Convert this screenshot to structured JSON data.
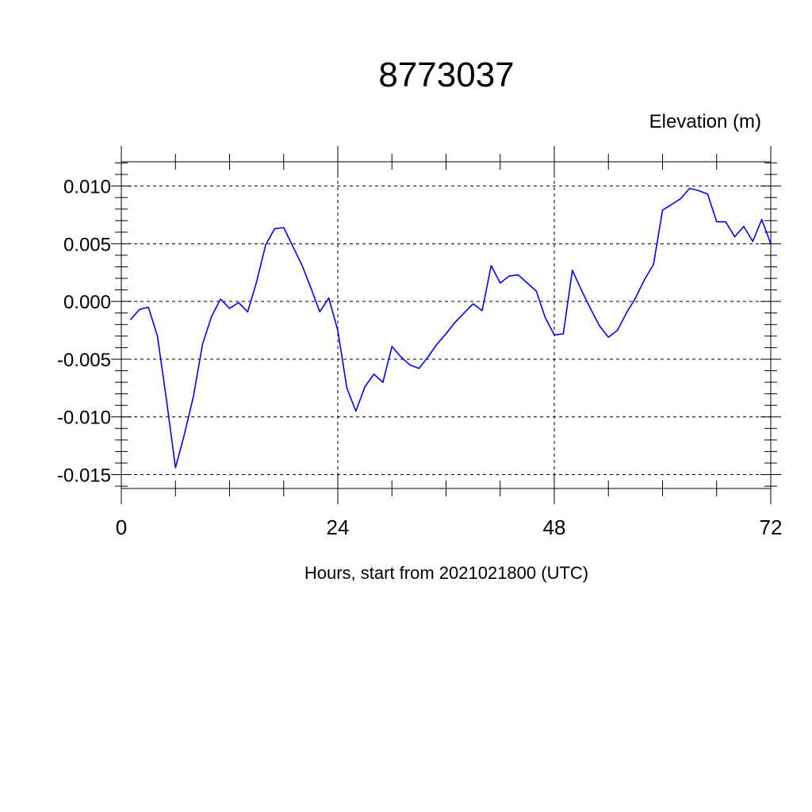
{
  "chart_data": {
    "type": "line",
    "title": "8773037",
    "ylabel": "Elevation (m)",
    "xlabel": "Hours, start from 2021021800 (UTC)",
    "xlim": [
      0,
      72
    ],
    "ylim": [
      -0.0162,
      0.0121
    ],
    "x_ticks": [
      0,
      24,
      48,
      72
    ],
    "x_tick_labels": [
      "0",
      "24",
      "48",
      "72"
    ],
    "y_ticks": [
      0.01,
      0.005,
      0.0,
      -0.005,
      -0.01,
      -0.015
    ],
    "y_tick_labels": [
      "0.010",
      "0.005",
      "0.000",
      "-0.005",
      "-0.010",
      "-0.015"
    ],
    "grid": "dashed at major ticks",
    "series": [
      {
        "color": "#0000ff",
        "x": [
          1,
          2,
          3,
          4,
          5,
          6,
          7,
          8,
          9,
          10,
          11,
          12,
          13,
          14,
          15,
          16,
          17,
          18,
          19,
          20,
          21,
          22,
          23,
          24,
          25,
          26,
          27,
          28,
          29,
          30,
          31,
          32,
          33,
          34,
          35,
          36,
          37,
          38,
          39,
          40,
          41,
          42,
          43,
          44,
          45,
          46,
          47,
          48,
          49,
          50,
          51,
          52,
          53,
          54,
          55,
          56,
          57,
          58,
          59,
          60,
          61,
          62,
          63,
          64,
          65,
          66,
          67,
          68,
          69,
          70,
          71,
          72
        ],
        "y": [
          -0.0016,
          -0.0007,
          -0.0005,
          -0.003,
          -0.0085,
          -0.0144,
          -0.0115,
          -0.0082,
          -0.0037,
          -0.0013,
          0.0002,
          -0.0006,
          -0.0001,
          -0.0009,
          0.0017,
          0.0049,
          0.0063,
          0.0064,
          0.0048,
          0.0032,
          0.0012,
          -0.0009,
          0.0003,
          -0.0025,
          -0.0075,
          -0.0095,
          -0.0074,
          -0.0063,
          -0.007,
          -0.0039,
          -0.0048,
          -0.0055,
          -0.0058,
          -0.0048,
          -0.0037,
          -0.0028,
          -0.0018,
          -0.001,
          -0.0002,
          -0.0008,
          0.0031,
          0.0016,
          0.0022,
          0.0023,
          0.0016,
          0.0009,
          -0.0014,
          -0.0029,
          -0.0028,
          0.0027,
          0.001,
          -0.0006,
          -0.0021,
          -0.0031,
          -0.0025,
          -0.001,
          0.0003,
          0.0019,
          0.0032,
          0.0079,
          0.0084,
          0.0089,
          0.0098,
          0.0096,
          0.0093,
          0.0069,
          0.0069,
          0.0056,
          0.0065,
          0.0052,
          0.0071,
          0.005
        ]
      }
    ]
  }
}
